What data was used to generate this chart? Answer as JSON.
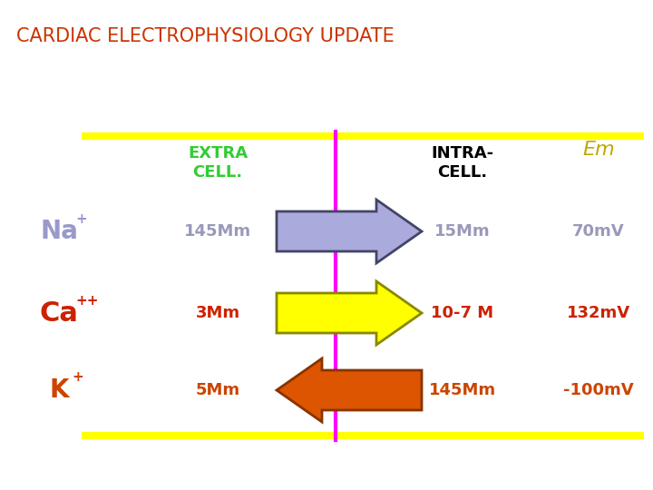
{
  "title": "CARDIAC ELECTROPHYSIOLOGY UPDATE",
  "title_color": "#cc3300",
  "title_fontsize": 15,
  "bg_color": "#ffffff",
  "yellow_line_color": "#ffff00",
  "membrane_color": "#ff00ff",
  "col_extra_label": "EXTRA\nCELL.",
  "col_intra_label": "INTRA-\nCELL.",
  "col_em_label": "Em",
  "col_extra_color": "#33cc33",
  "col_intra_color": "#000000",
  "col_em_color": "#bbaa00",
  "rows": [
    {
      "ion": "Na",
      "ion_sup": "+",
      "ion_color": "#9999cc",
      "extra_val": "145Mm",
      "intra_val": "15Mm",
      "em_val": "70mV",
      "val_color": "#9999bb",
      "arrow_dir": "right",
      "arrow_fill": "#aaaadd",
      "arrow_edge": "#444466"
    },
    {
      "ion": "Ca",
      "ion_sup": "++",
      "ion_color": "#cc2200",
      "extra_val": "3Mm",
      "intra_val": "10-7 M",
      "em_val": "132mV",
      "val_color": "#cc2200",
      "arrow_dir": "right",
      "arrow_fill": "#ffff00",
      "arrow_edge": "#888800"
    },
    {
      "ion": "K",
      "ion_sup": "+",
      "ion_color": "#cc4400",
      "extra_val": "5Mm",
      "intra_val": "145Mm",
      "em_val": "-100mV",
      "val_color": "#cc4400",
      "arrow_dir": "left",
      "arrow_fill": "#dd5500",
      "arrow_edge": "#883300"
    }
  ]
}
